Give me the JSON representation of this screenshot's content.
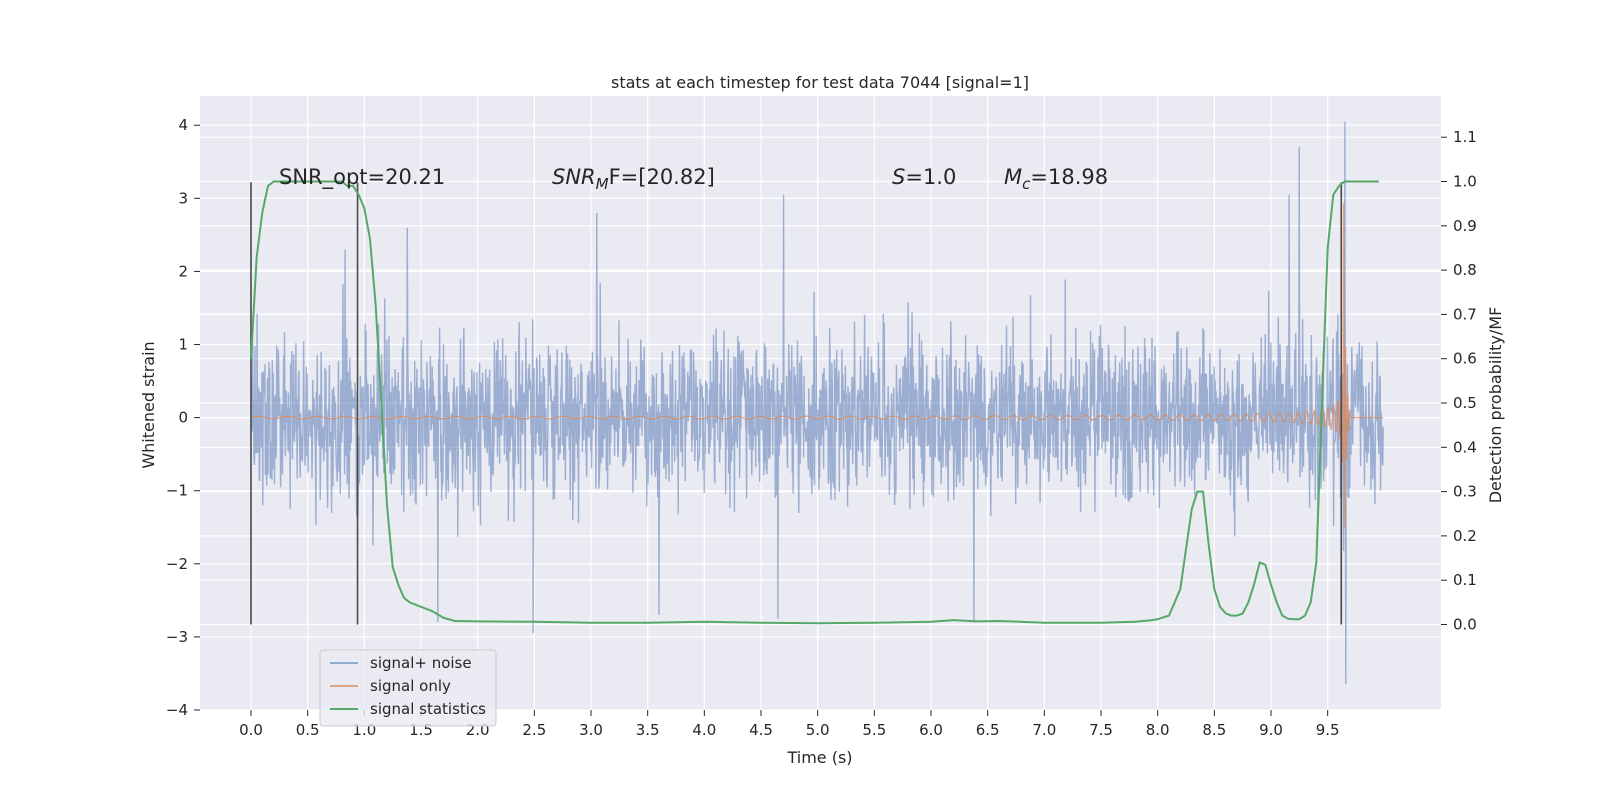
{
  "chart_data": {
    "type": "line",
    "title": "stats at each timestep for test data 7044 [signal=1]",
    "xlabel": "Time (s)",
    "ylabel": "Whitened strain",
    "y2label": "Detection probability/MF",
    "xlim": [
      -0.45,
      10.5
    ],
    "ylim": [
      -4.0,
      4.4
    ],
    "y2lim": [
      -0.193,
      1.193
    ],
    "x_ticks": [
      0.0,
      0.5,
      1.0,
      1.5,
      2.0,
      2.5,
      3.0,
      3.5,
      4.0,
      4.5,
      5.0,
      5.5,
      6.0,
      6.5,
      7.0,
      7.5,
      8.0,
      8.5,
      9.0,
      9.5
    ],
    "x_tick_labels": [
      "0.0",
      "0.5",
      "1.0",
      "1.5",
      "2.0",
      "2.5",
      "3.0",
      "3.5",
      "4.0",
      "4.5",
      "5.0",
      "5.5",
      "6.0",
      "6.5",
      "7.0",
      "7.5",
      "8.0",
      "8.5",
      "9.0",
      "9.5"
    ],
    "y_ticks": [
      -4,
      -3,
      -2,
      -1,
      0,
      1,
      2,
      3,
      4
    ],
    "y_tick_labels": [
      "−4",
      "−3",
      "−2",
      "−1",
      "0",
      "1",
      "2",
      "3",
      "4"
    ],
    "y2_ticks": [
      0.0,
      0.1,
      0.2,
      0.3,
      0.4,
      0.5,
      0.6,
      0.7,
      0.8,
      0.9,
      1.0,
      1.1
    ],
    "y2_tick_labels": [
      "0.0",
      "0.1",
      "0.2",
      "0.3",
      "0.4",
      "0.5",
      "0.6",
      "0.7",
      "0.8",
      "0.9",
      "1.0",
      "1.1"
    ],
    "grid": true,
    "legend_position": "bottom-left",
    "colors": {
      "background": "#eaeaf2",
      "grid": "#ffffff",
      "noise": "#4c72b0",
      "signal": "#dd8452",
      "stats": "#55a868",
      "marker": "#4a4a4a"
    },
    "series": [
      {
        "name": "signal+ noise",
        "kind": "noise",
        "x_range": [
          0.0,
          9.99
        ],
        "base_amplitude": 1.35,
        "peak_range": [
          -2.95,
          3.7
        ],
        "spikes": [
          {
            "x": 0.83,
            "y": 2.3
          },
          {
            "x": 1.38,
            "y": 2.6
          },
          {
            "x": 1.65,
            "y": -2.8
          },
          {
            "x": 2.49,
            "y": -2.95
          },
          {
            "x": 3.05,
            "y": 2.8
          },
          {
            "x": 3.6,
            "y": -2.7
          },
          {
            "x": 4.7,
            "y": 3.05
          },
          {
            "x": 4.65,
            "y": -2.75
          },
          {
            "x": 6.38,
            "y": -2.8
          },
          {
            "x": 9.25,
            "y": 3.7
          },
          {
            "x": 9.16,
            "y": 3.05
          },
          {
            "x": 9.65,
            "y": 4.05
          },
          {
            "x": 9.66,
            "y": -3.65
          }
        ]
      },
      {
        "name": "signal only",
        "kind": "chirp",
        "x_range": [
          0.0,
          9.99
        ],
        "merger_x": 9.64,
        "peak_amplitude": 3.0,
        "ringdown_end_x": 9.7
      },
      {
        "name": "signal statistics",
        "axis": "right",
        "x": [
          0.0,
          0.05,
          0.1,
          0.15,
          0.2,
          0.3,
          0.4,
          0.5,
          0.6,
          0.7,
          0.8,
          0.85,
          0.9,
          0.95,
          1.0,
          1.05,
          1.1,
          1.15,
          1.2,
          1.25,
          1.3,
          1.35,
          1.4,
          1.45,
          1.5,
          1.6,
          1.7,
          1.8,
          2.0,
          2.5,
          3.0,
          3.5,
          4.0,
          4.5,
          5.0,
          5.5,
          6.0,
          6.2,
          6.4,
          6.6,
          7.0,
          7.5,
          7.8,
          7.95,
          8.0,
          8.1,
          8.2,
          8.3,
          8.35,
          8.4,
          8.45,
          8.5,
          8.55,
          8.6,
          8.65,
          8.7,
          8.75,
          8.8,
          8.85,
          8.9,
          8.95,
          9.0,
          9.05,
          9.1,
          9.15,
          9.2,
          9.25,
          9.3,
          9.35,
          9.4,
          9.45,
          9.5,
          9.55,
          9.6,
          9.65,
          9.7,
          9.75,
          9.8,
          9.85,
          9.9,
          9.95
        ],
        "y": [
          0.6,
          0.83,
          0.93,
          0.99,
          1.0,
          1.0,
          1.0,
          1.0,
          1.0,
          1.0,
          1.0,
          0.99,
          0.99,
          0.97,
          0.94,
          0.87,
          0.72,
          0.5,
          0.27,
          0.13,
          0.09,
          0.06,
          0.05,
          0.045,
          0.04,
          0.03,
          0.015,
          0.008,
          0.007,
          0.006,
          0.004,
          0.004,
          0.006,
          0.004,
          0.003,
          0.004,
          0.006,
          0.01,
          0.007,
          0.008,
          0.004,
          0.004,
          0.006,
          0.01,
          0.012,
          0.02,
          0.08,
          0.26,
          0.3,
          0.3,
          0.18,
          0.08,
          0.04,
          0.025,
          0.02,
          0.02,
          0.025,
          0.05,
          0.09,
          0.14,
          0.135,
          0.09,
          0.05,
          0.02,
          0.013,
          0.012,
          0.012,
          0.02,
          0.05,
          0.14,
          0.5,
          0.85,
          0.97,
          0.99,
          1.0,
          1.0,
          1.0,
          1.0,
          1.0,
          1.0,
          1.0
        ]
      }
    ],
    "markers": {
      "bottom": -2.83,
      "top": 3.22,
      "x": [
        0.0,
        0.94,
        9.62
      ]
    },
    "annotations": [
      {
        "x": 0.2,
        "y": 3.22,
        "text": "SNR_opt=20.21"
      },
      {
        "x": 2.6,
        "y": 3.22,
        "text_main": "SNR",
        "text_sub": "M",
        "text_rest": "F=[20.82]"
      },
      {
        "x": 5.6,
        "y": 3.22,
        "text_main": "S",
        "text_rest": "=1.0"
      },
      {
        "x": 6.6,
        "y": 3.22,
        "text_main": "M",
        "text_sub": "c",
        "text_rest": "=18.98"
      }
    ]
  }
}
